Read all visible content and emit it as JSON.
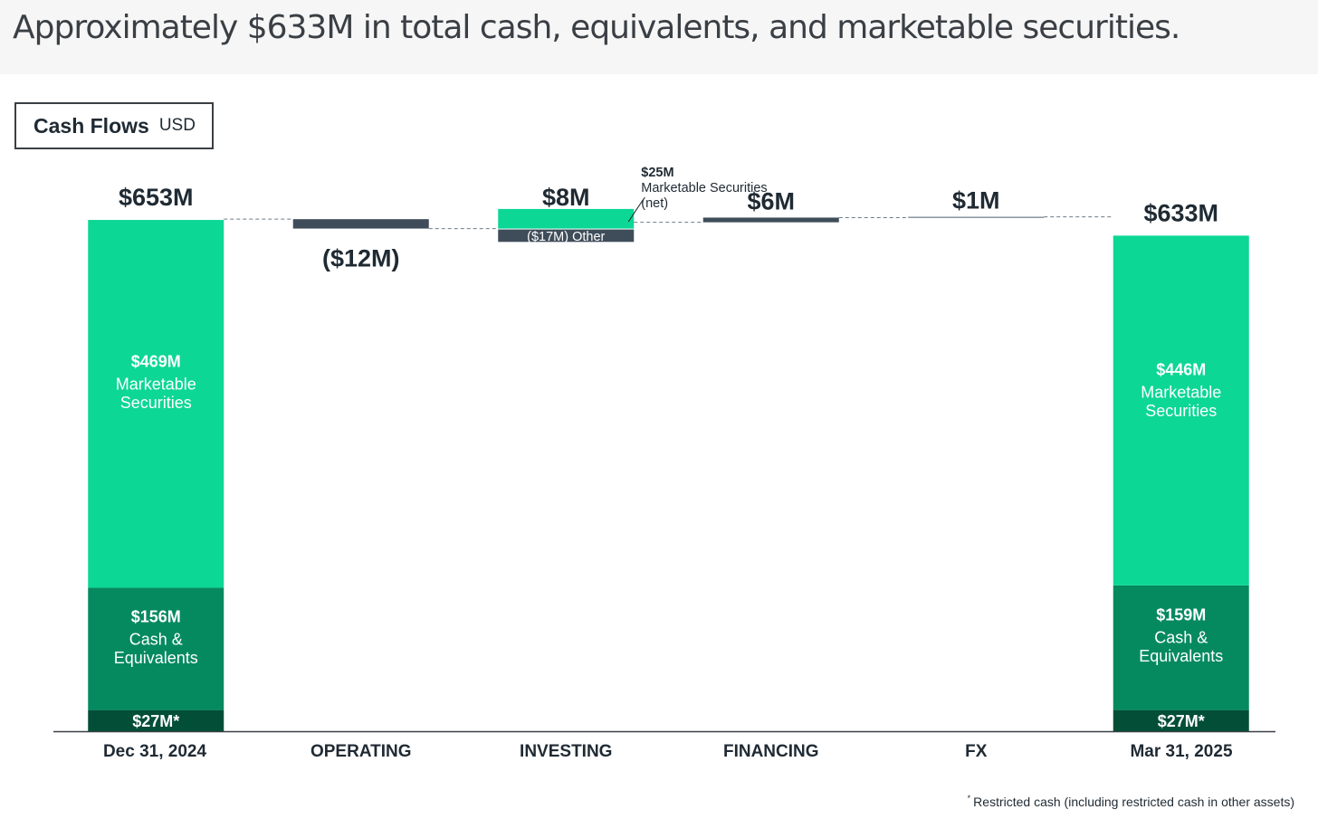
{
  "header": {
    "title": "Approximately $633M in total cash, equivalents, and marketable securities."
  },
  "chart_box": {
    "title": "Cash Flows",
    "unit": "USD"
  },
  "footnote": {
    "marker": "*",
    "text": "Restricted cash (including restricted cash in other assets)"
  },
  "colors": {
    "light_green": "#0cd794",
    "mid_green": "#058a5f",
    "dark_green": "#034e37",
    "slate": "#3f4d5a",
    "text_dark": "#1f2a33"
  },
  "chart_data": {
    "type": "bar",
    "subtype": "waterfall",
    "unit": "USD millions",
    "categories": [
      "Dec 31, 2024",
      "OPERATING",
      "INVESTING",
      "FINANCING",
      "FX",
      "Mar 31, 2025"
    ],
    "start": {
      "category": "Dec 31, 2024",
      "total": 653,
      "total_label": "$653M",
      "segments": [
        {
          "name": "Restricted cash",
          "value": 27,
          "value_label": "$27M*",
          "desc": ""
        },
        {
          "name": "Cash & Equivalents",
          "value": 156,
          "value_label": "$156M",
          "desc": "Cash & Equivalents"
        },
        {
          "name": "Marketable Securities",
          "value": 469,
          "value_label": "$469M",
          "desc": "Marketable Securities"
        }
      ]
    },
    "flows": [
      {
        "category": "OPERATING",
        "value": -12,
        "value_label": "($12M)"
      },
      {
        "category": "INVESTING",
        "value": 8,
        "value_label": "$8M",
        "parts": [
          {
            "name": "Marketable Securities (net)",
            "value": 25,
            "value_label": "$25M",
            "desc": "Marketable Securities (net)"
          },
          {
            "name": "Other",
            "value": -17,
            "value_label": "($17M) Other"
          }
        ]
      },
      {
        "category": "FINANCING",
        "value": 6,
        "value_label": "$6M"
      },
      {
        "category": "FX",
        "value": 1,
        "value_label": "$1M"
      }
    ],
    "end": {
      "category": "Mar 31, 2025",
      "total": 633,
      "total_label": "$633M",
      "segments": [
        {
          "name": "Restricted cash",
          "value": 27,
          "value_label": "$27M*",
          "desc": ""
        },
        {
          "name": "Cash & Equivalents",
          "value": 159,
          "value_label": "$159M",
          "desc": "Cash & Equivalents"
        },
        {
          "name": "Marketable Securities",
          "value": 446,
          "value_label": "$446M",
          "desc": "Marketable Securities"
        }
      ]
    }
  }
}
